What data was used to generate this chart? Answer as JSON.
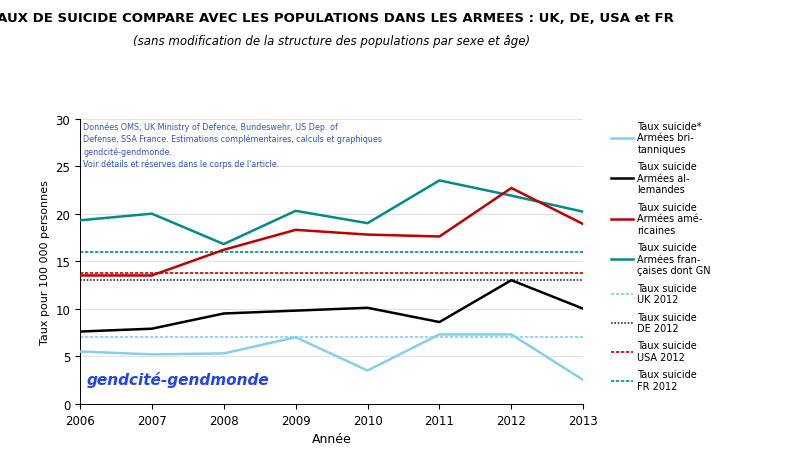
{
  "title": "TAUX DE SUICIDE COMPARE AVEC LES POPULATIONS DANS LES ARMEES : UK, DE, USA et FR",
  "subtitle": "(sans modification de la structure des populations par sexe et âge)",
  "xlabel": "Année",
  "ylabel": "Taux pour 100 000 personnes",
  "years": [
    2006,
    2007,
    2008,
    2009,
    2010,
    2011,
    2012,
    2013
  ],
  "uk_army": [
    5.5,
    5.2,
    5.3,
    7.0,
    3.5,
    7.3,
    7.3,
    2.5
  ],
  "de_army": [
    7.6,
    7.9,
    9.5,
    9.8,
    10.1,
    8.6,
    13.0,
    10.0
  ],
  "usa_army": [
    13.5,
    13.5,
    16.2,
    18.3,
    17.8,
    17.6,
    22.7,
    18.9
  ],
  "fr_army": [
    19.3,
    20.0,
    16.8,
    20.3,
    19.0,
    23.5,
    21.9,
    20.2
  ],
  "hline_uk": 7.0,
  "hline_de": 13.0,
  "hline_usa": 13.8,
  "hline_fr": 16.0,
  "color_uk_army": "#87CEEB",
  "color_de_army": "#000000",
  "color_usa_army": "#C00000",
  "color_fr_army": "#008B8B",
  "color_hline_uk": "#87CEEB",
  "color_hline_de": "#333333",
  "color_hline_usa": "#C00000",
  "color_hline_fr": "#008B8B",
  "annotation_text": "Données OMS, UK Ministry of Defence, Bundeswehr, US Dep. of\nDefense, SSA France. Estimations complémentaires, calculs et graphiques\ngendcité-gendmonde.\nVoir détails et réserves dans le corps de l'article.",
  "watermark": "gendcité-gendmonde",
  "ylim": [
    0,
    30
  ],
  "yticks": [
    0,
    5,
    10,
    15,
    20,
    25,
    30
  ],
  "legend_uk_army": "Taux suicide*\nArmées bri-\ntanniques",
  "legend_de_army": "Taux suicide\nArmées al-\nlemandes",
  "legend_usa_army": "Taux suicide\nArmées amé-\nricaines",
  "legend_fr_army": "Taux suicide\nArmées fran-\nçaises dont GN",
  "legend_hline_uk": "Taux suicide\nUK 2012",
  "legend_hline_de": "Taux suicide\nDE 2012",
  "legend_hline_usa": "Taux suicide\nUSA 2012",
  "legend_hline_fr": "Taux suicide\nFR 2012"
}
